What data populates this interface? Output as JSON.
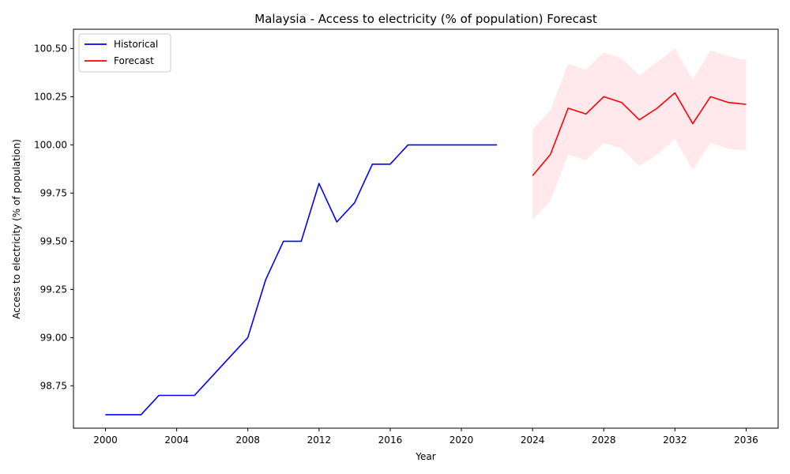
{
  "chart_data": {
    "type": "line",
    "title": "Malaysia - Access to electricity (% of population) Forecast",
    "xlabel": "Year",
    "ylabel": "Access to electricity (% of population)",
    "xlim": [
      1998.2,
      2037.8
    ],
    "ylim": [
      98.53,
      100.6
    ],
    "x_ticks": [
      2000,
      2004,
      2008,
      2012,
      2016,
      2020,
      2024,
      2028,
      2032,
      2036
    ],
    "y_ticks": [
      98.75,
      99.0,
      99.25,
      99.5,
      99.75,
      100.0,
      100.25,
      100.5
    ],
    "y_tick_labels": [
      "98.75",
      "99.00",
      "99.25",
      "99.50",
      "99.75",
      "100.00",
      "100.25",
      "100.50"
    ],
    "grid": false,
    "legend_position": "top-left",
    "series": [
      {
        "name": "Historical",
        "color": "#0000ff",
        "x": [
          2000,
          2001,
          2002,
          2003,
          2004,
          2005,
          2006,
          2007,
          2008,
          2009,
          2010,
          2011,
          2012,
          2013,
          2014,
          2015,
          2016,
          2017,
          2018,
          2019,
          2020,
          2021,
          2022
        ],
        "y": [
          98.6,
          98.6,
          98.6,
          98.7,
          98.7,
          98.7,
          98.8,
          98.9,
          99.0,
          99.3,
          99.5,
          99.5,
          99.8,
          99.6,
          99.7,
          99.9,
          99.9,
          100.0,
          100.0,
          100.0,
          100.0,
          100.0,
          100.0
        ]
      },
      {
        "name": "Forecast",
        "color": "#ff0000",
        "x": [
          2024,
          2025,
          2026,
          2027,
          2028,
          2029,
          2030,
          2031,
          2032,
          2033,
          2034,
          2035,
          2036
        ],
        "y": [
          99.84,
          99.95,
          100.19,
          100.16,
          100.25,
          100.22,
          100.13,
          100.19,
          100.27,
          100.11,
          100.25,
          100.22,
          100.21
        ],
        "lower": [
          99.61,
          99.71,
          99.95,
          99.92,
          100.01,
          99.98,
          99.89,
          99.95,
          100.03,
          99.87,
          100.01,
          99.98,
          99.97
        ],
        "upper": [
          100.08,
          100.18,
          100.42,
          100.39,
          100.48,
          100.45,
          100.36,
          100.43,
          100.5,
          100.34,
          100.49,
          100.46,
          100.44
        ],
        "band_color": "#ffc0cb"
      }
    ]
  }
}
